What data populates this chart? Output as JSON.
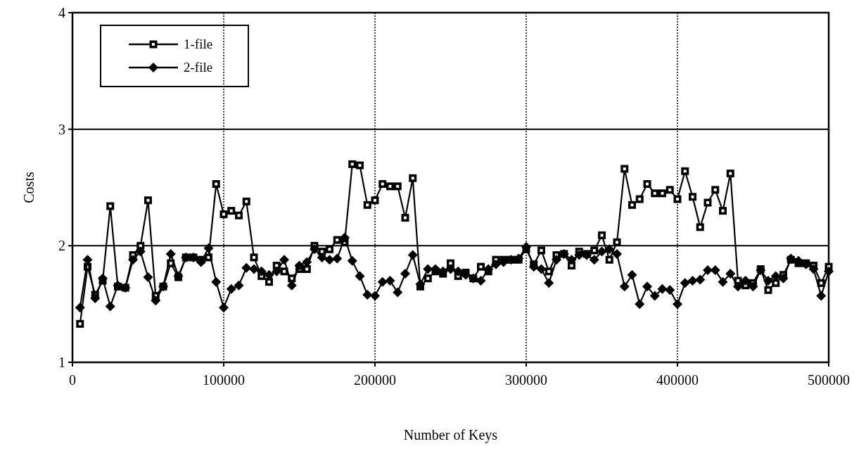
{
  "chart_data": {
    "type": "line",
    "xlabel": "Number of Keys",
    "ylabel": "Costs",
    "x": [
      5000,
      10000,
      15000,
      20000,
      25000,
      30000,
      35000,
      40000,
      45000,
      50000,
      55000,
      60000,
      65000,
      70000,
      75000,
      80000,
      85000,
      90000,
      95000,
      100000,
      105000,
      110000,
      115000,
      120000,
      125000,
      130000,
      135000,
      140000,
      145000,
      150000,
      155000,
      160000,
      165000,
      170000,
      175000,
      180000,
      185000,
      190000,
      195000,
      200000,
      205000,
      210000,
      215000,
      220000,
      225000,
      230000,
      235000,
      240000,
      245000,
      250000,
      255000,
      260000,
      265000,
      270000,
      275000,
      280000,
      285000,
      290000,
      295000,
      300000,
      305000,
      310000,
      315000,
      320000,
      325000,
      330000,
      335000,
      340000,
      345000,
      350000,
      355000,
      360000,
      365000,
      370000,
      375000,
      380000,
      385000,
      390000,
      395000,
      400000,
      405000,
      410000,
      415000,
      420000,
      425000,
      430000,
      435000,
      440000,
      445000,
      450000,
      455000,
      460000,
      465000,
      470000,
      475000,
      480000,
      485000,
      490000,
      495000,
      500000
    ],
    "series": [
      {
        "name": "1-file",
        "color": "#000000",
        "marker": "square",
        "values": [
          1.33,
          1.82,
          1.58,
          1.7,
          2.34,
          1.65,
          1.64,
          1.92,
          2.0,
          2.39,
          1.57,
          1.65,
          1.85,
          1.73,
          1.9,
          1.9,
          1.88,
          1.9,
          2.53,
          2.27,
          2.3,
          2.26,
          2.38,
          1.9,
          1.74,
          1.69,
          1.83,
          1.78,
          1.72,
          1.8,
          1.8,
          2.0,
          1.95,
          1.97,
          2.05,
          2.03,
          2.7,
          2.69,
          2.35,
          2.39,
          2.53,
          2.51,
          2.51,
          2.24,
          2.58,
          1.65,
          1.72,
          1.78,
          1.76,
          1.85,
          1.74,
          1.77,
          1.72,
          1.82,
          1.78,
          1.88,
          1.88,
          1.88,
          1.88,
          1.97,
          1.84,
          1.96,
          1.78,
          1.92,
          1.93,
          1.83,
          1.95,
          1.93,
          1.96,
          2.09,
          1.88,
          2.03,
          2.66,
          2.35,
          2.4,
          2.53,
          2.45,
          2.45,
          2.48,
          2.4,
          2.64,
          2.42,
          2.16,
          2.37,
          2.48,
          2.3,
          2.62,
          1.7,
          1.66,
          1.68,
          1.8,
          1.62,
          1.68,
          1.75,
          1.88,
          1.85,
          1.85,
          1.83,
          1.68,
          1.82
        ]
      },
      {
        "name": "2-file",
        "color": "#000000",
        "marker": "diamond",
        "values": [
          1.47,
          1.88,
          1.55,
          1.72,
          1.48,
          1.66,
          1.64,
          1.88,
          1.95,
          1.73,
          1.53,
          1.65,
          1.93,
          1.74,
          1.9,
          1.9,
          1.86,
          1.98,
          1.69,
          1.47,
          1.63,
          1.66,
          1.81,
          1.8,
          1.78,
          1.75,
          1.78,
          1.88,
          1.66,
          1.83,
          1.86,
          1.97,
          1.9,
          1.88,
          1.89,
          2.07,
          1.87,
          1.74,
          1.58,
          1.57,
          1.69,
          1.7,
          1.6,
          1.76,
          1.92,
          1.67,
          1.8,
          1.8,
          1.78,
          1.8,
          1.78,
          1.75,
          1.72,
          1.7,
          1.8,
          1.84,
          1.86,
          1.88,
          1.89,
          1.99,
          1.82,
          1.8,
          1.68,
          1.88,
          1.93,
          1.88,
          1.92,
          1.92,
          1.88,
          1.95,
          1.97,
          1.93,
          1.65,
          1.75,
          1.5,
          1.65,
          1.57,
          1.63,
          1.62,
          1.5,
          1.68,
          1.7,
          1.71,
          1.79,
          1.79,
          1.69,
          1.76,
          1.65,
          1.7,
          1.65,
          1.79,
          1.7,
          1.74,
          1.72,
          1.89,
          1.87,
          1.84,
          1.8,
          1.57,
          1.78
        ]
      }
    ],
    "xlim": [
      0,
      500000
    ],
    "xticks": [
      0,
      100000,
      200000,
      300000,
      400000,
      500000
    ],
    "ylim": [
      1,
      4
    ],
    "yticks": [
      1,
      2,
      3,
      4
    ],
    "grid": true,
    "legend": "top left",
    "line_style": "solid"
  }
}
